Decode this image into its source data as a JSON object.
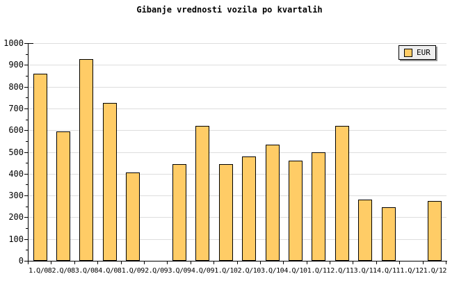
{
  "chart_data": {
    "type": "bar",
    "title": "Gibanje vrednosti vozila po kvartalih",
    "categories": [
      "1.Q/08",
      "2.Q/08",
      "3.Q/08",
      "4.Q/08",
      "1.Q/09",
      "2.Q/09",
      "3.Q/09",
      "4.Q/09",
      "1.Q/10",
      "2.Q/10",
      "3.Q/10",
      "4.Q/10",
      "1.Q/11",
      "2.Q/11",
      "3.Q/11",
      "4.Q/11",
      "1.Q/12",
      "1.Q/12"
    ],
    "series": [
      {
        "name": "EUR",
        "values": [
          860,
          595,
          925,
          725,
          405,
          0,
          445,
          620,
          445,
          480,
          535,
          460,
          500,
          620,
          280,
          245,
          0,
          275
        ]
      }
    ],
    "xlabel": "",
    "ylabel": "",
    "ylim": [
      0,
      1000
    ],
    "ytick_major": 100,
    "ytick_minor": 50,
    "grid": "horizontal-major",
    "legend_position": "top-right",
    "colors": {
      "bar_fill": "#ffcc66",
      "bar_border": "#000000",
      "gridline": "#dddddd",
      "axis": "#000000",
      "legend_bg": "#efefef",
      "legend_shadow": "#999999",
      "background": "#ffffff",
      "text": "#000000"
    }
  }
}
